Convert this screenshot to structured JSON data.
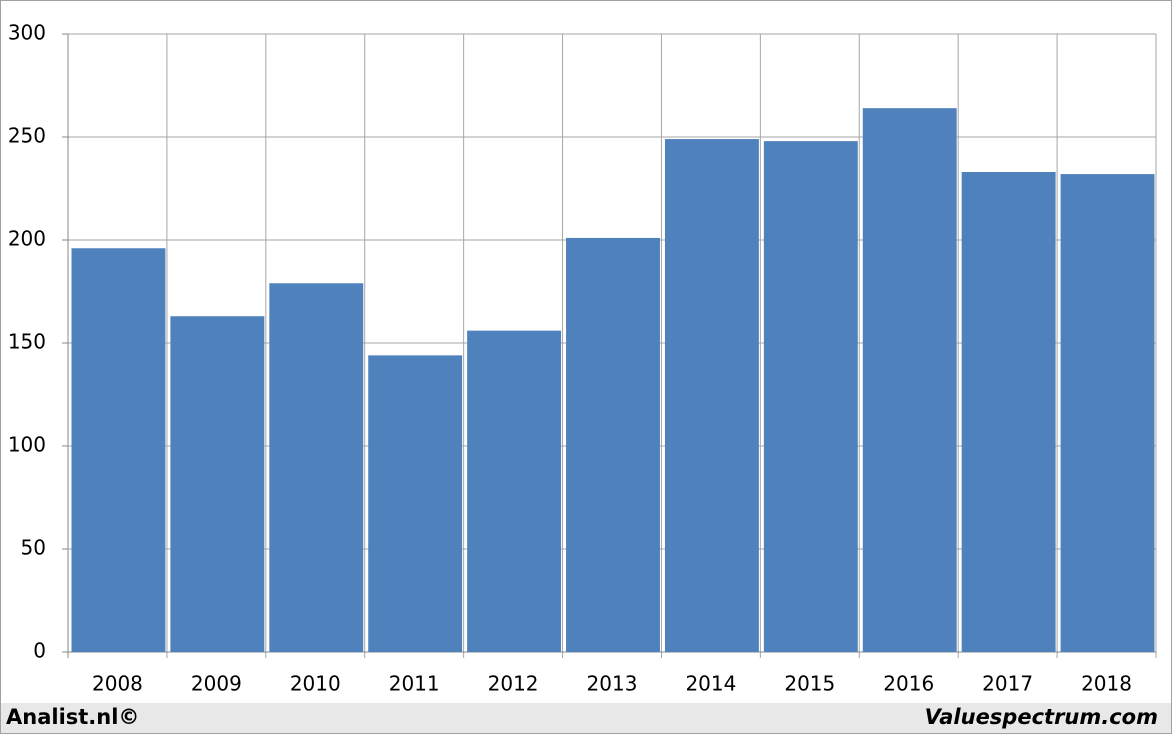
{
  "chart_data": {
    "type": "bar",
    "categories": [
      "2008",
      "2009",
      "2010",
      "2011",
      "2012",
      "2013",
      "2014",
      "2015",
      "2016",
      "2017",
      "2018"
    ],
    "values": [
      196,
      163,
      179,
      144,
      156,
      201,
      249,
      248,
      264,
      233,
      232
    ],
    "color": "#4f81bd",
    "ylim": [
      0,
      300
    ],
    "yticks": [
      0,
      50,
      100,
      150,
      200,
      250,
      300
    ],
    "grid": true
  },
  "footer": {
    "left": "Analist.nl©",
    "right": "Valuespectrum.com"
  }
}
